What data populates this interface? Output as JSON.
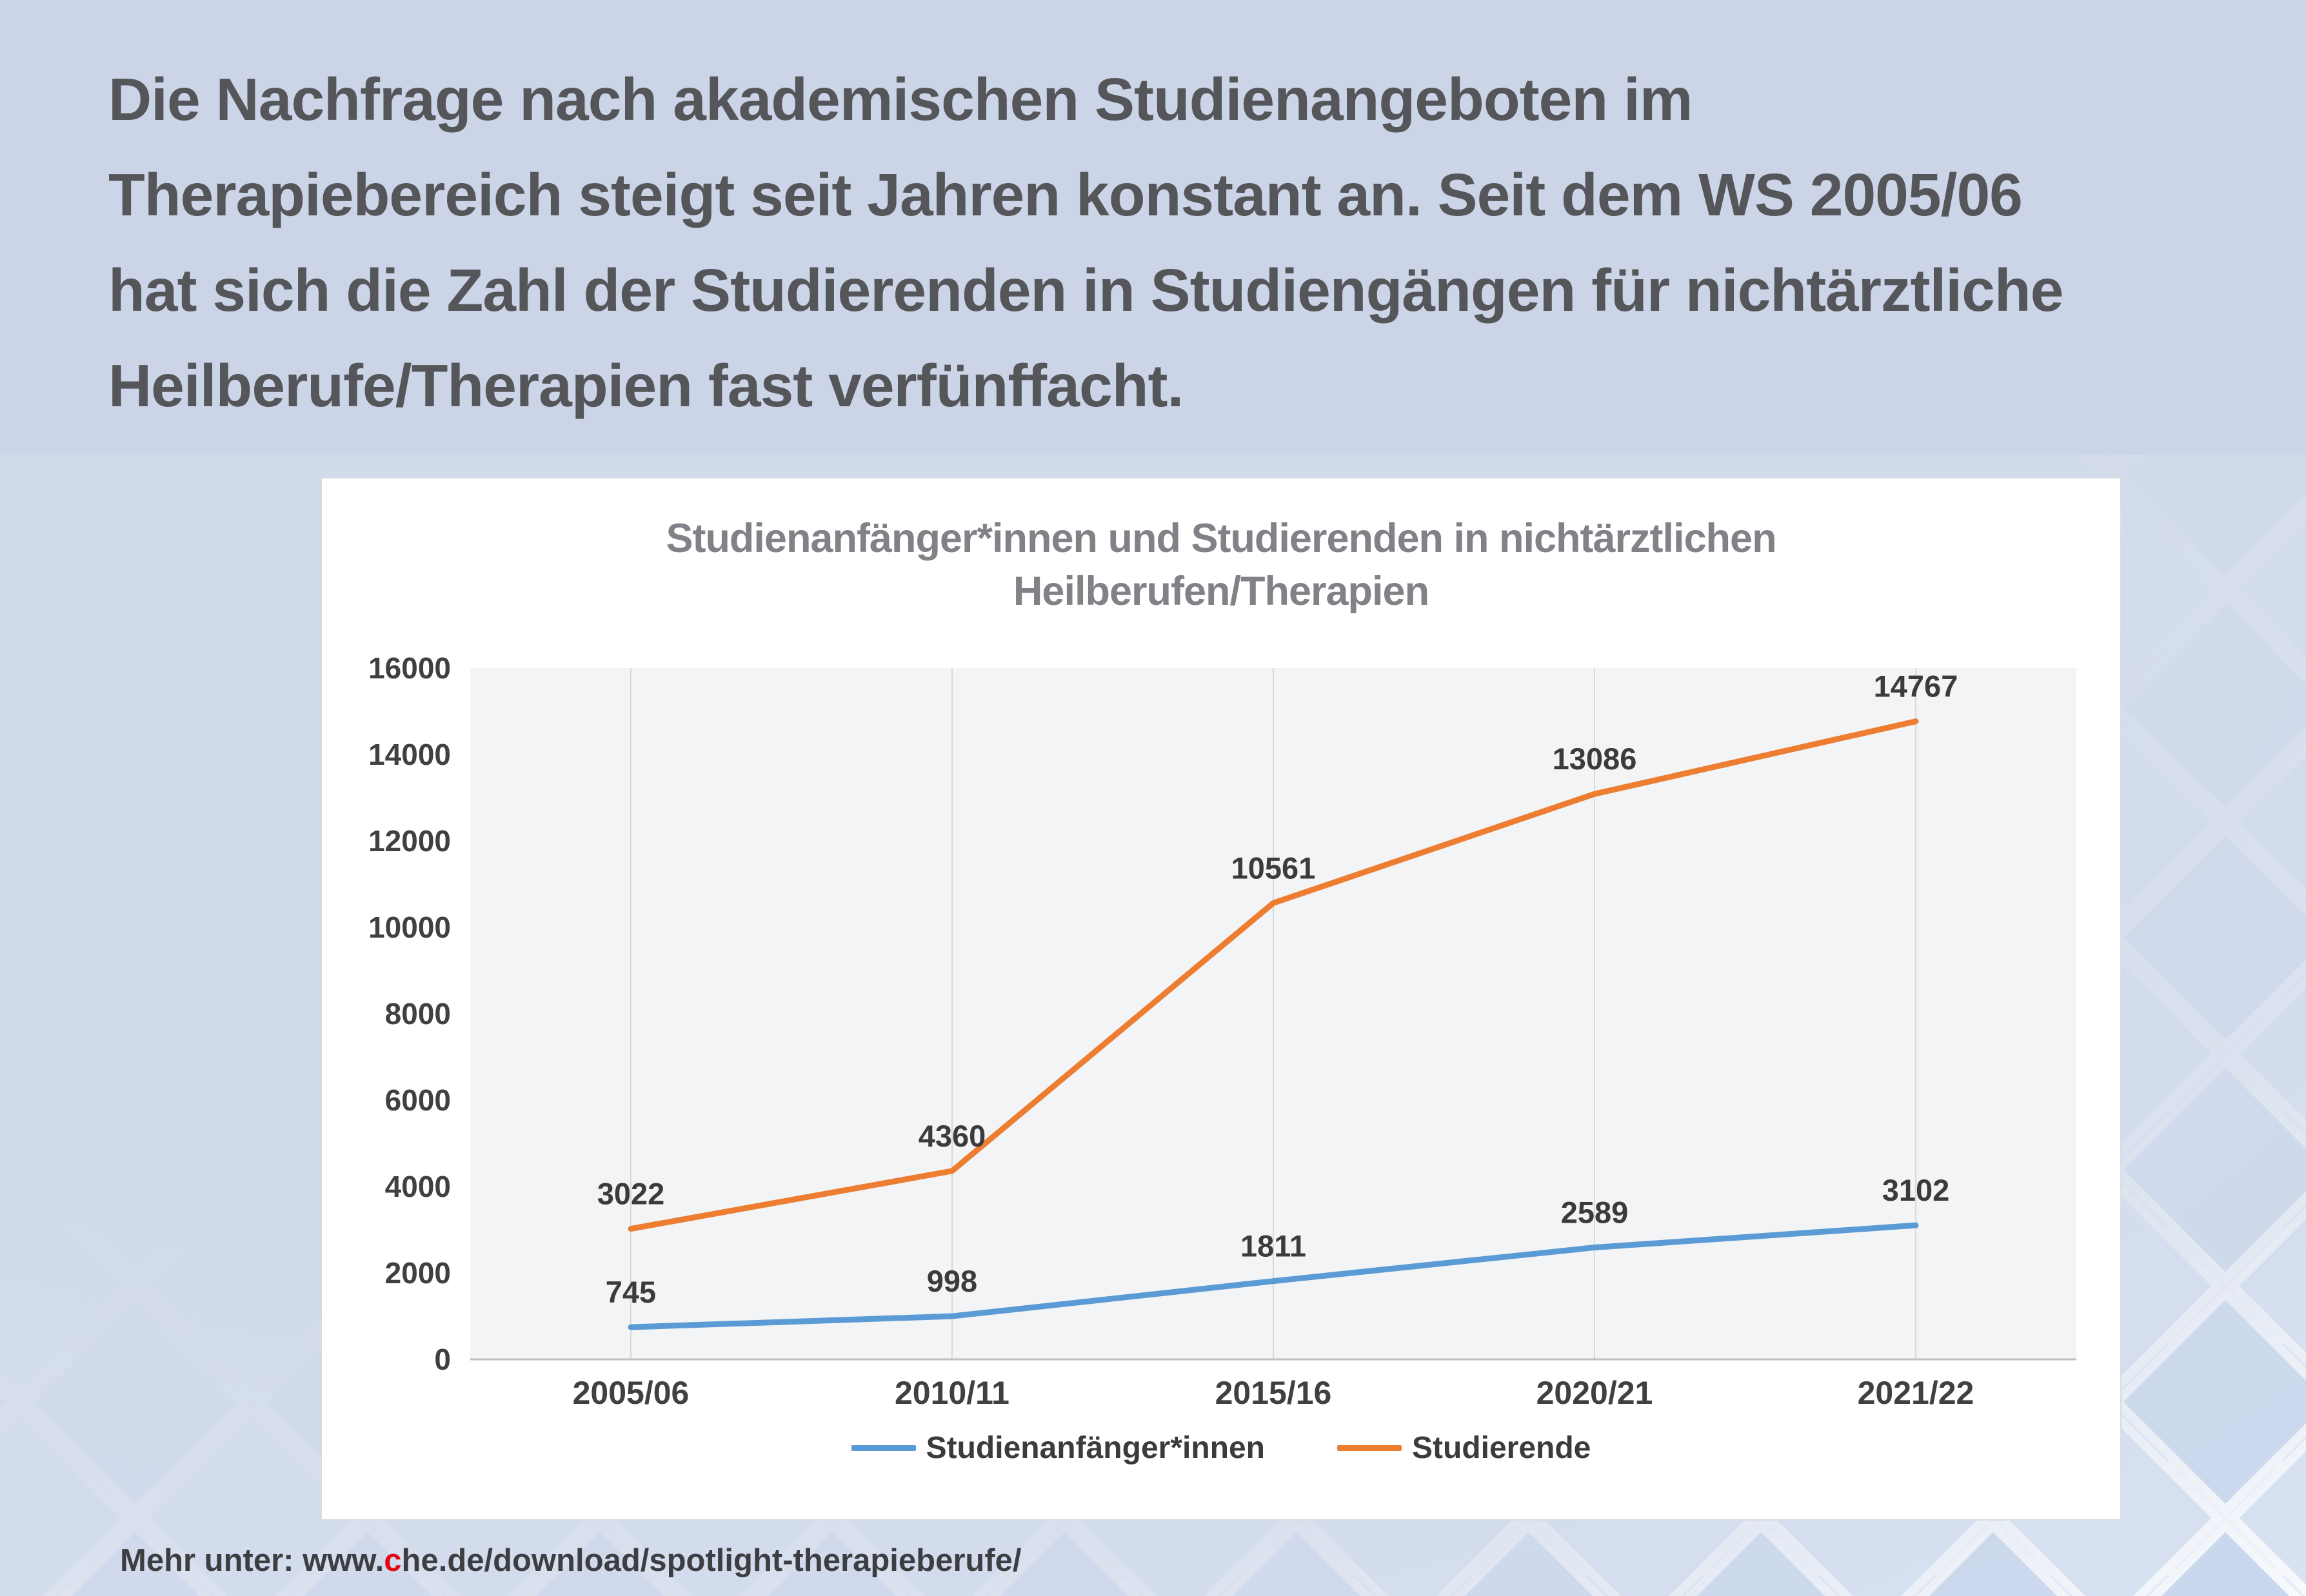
{
  "header": {
    "lines": [
      "Die Nachfrage nach akademischen Studienangeboten im",
      "Therapiebereich steigt seit Jahren konstant an. Seit dem WS 2005/06",
      "hat sich die Zahl der Studierenden in Studiengängen für nichtärztliche",
      "Heilberufe/Therapien fast verfünffacht."
    ]
  },
  "chart_data": {
    "type": "line",
    "title": "Studienanfänger*innen und Studierenden in nichtärztlichen Heilberufen/Therapien",
    "title_lines": [
      "Studienanfänger*innen und Studierenden in nichtärztlichen",
      "Heilberufen/Therapien"
    ],
    "categories": [
      "2005/06",
      "2010/11",
      "2015/16",
      "2020/21",
      "2021/22"
    ],
    "series": [
      {
        "name": "Studienanfänger*innen",
        "color": "#5B9BD5",
        "values": [
          745,
          998,
          1811,
          2589,
          3102
        ]
      },
      {
        "name": "Studierende",
        "color": "#ED7D31",
        "values": [
          3022,
          4360,
          10561,
          13086,
          14767
        ]
      }
    ],
    "ylim": [
      0,
      16000
    ],
    "yticks": [
      0,
      2000,
      4000,
      6000,
      8000,
      10000,
      12000,
      14000,
      16000
    ],
    "grid": "vertical",
    "legend_position": "bottom"
  },
  "footer": {
    "prefix": "Mehr unter: www.",
    "highlight": "c",
    "rest": "he.de/download/spotlight-therapieberufe/"
  },
  "colors": {
    "accent_red": "#e30613",
    "series_blue": "#5B9BD5",
    "series_orange": "#ED7D31",
    "plot_bg": "#f3f4f6",
    "gridline": "#d9d9d9",
    "axis": "#bfbfbf"
  }
}
